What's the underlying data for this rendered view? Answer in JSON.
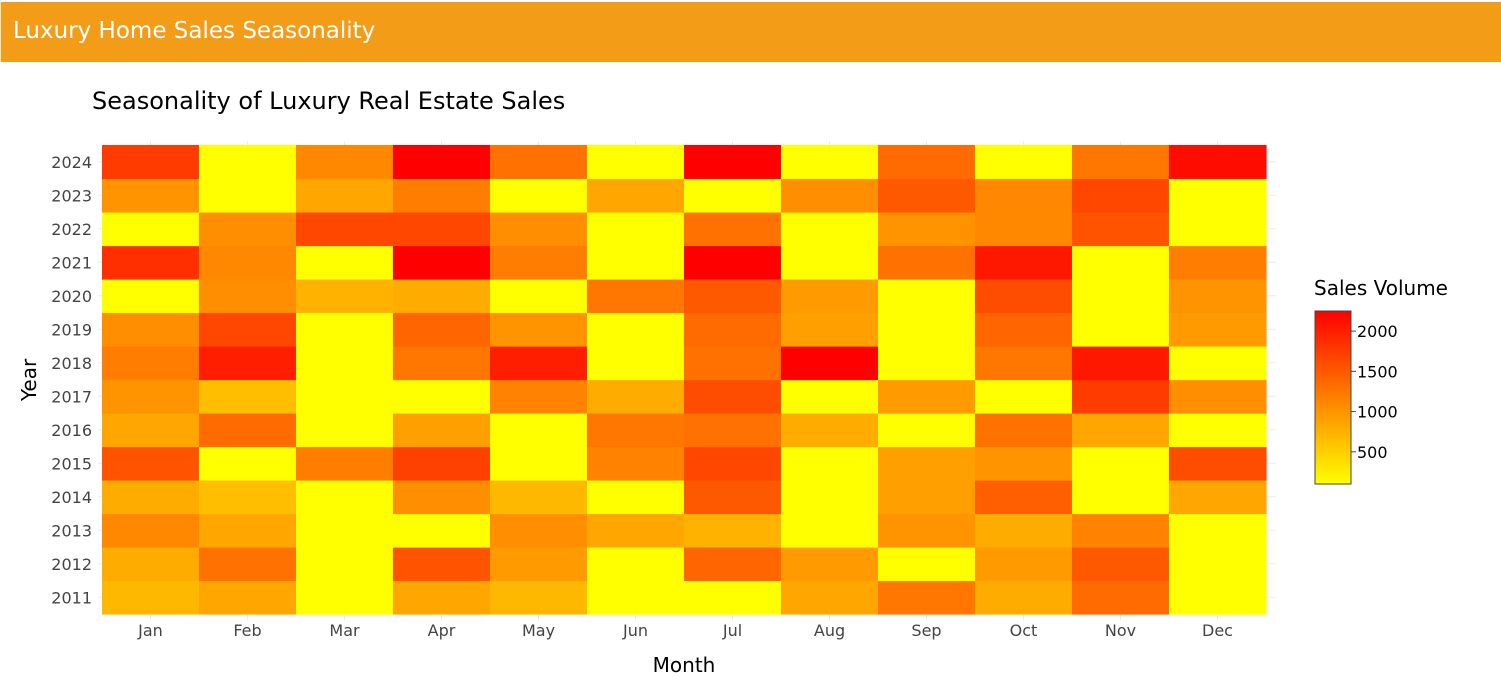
{
  "app": {
    "title": "Luxury Home Sales Seasonality",
    "header_color": "#f39c17"
  },
  "chart_data": {
    "type": "heatmap",
    "title": "Seasonality of Luxury Real Estate Sales",
    "xlabel": "Month",
    "ylabel": "Year",
    "x": [
      "Jan",
      "Feb",
      "Mar",
      "Apr",
      "May",
      "Jun",
      "Jul",
      "Aug",
      "Sep",
      "Oct",
      "Nov",
      "Dec"
    ],
    "y": [
      "2011",
      "2012",
      "2013",
      "2014",
      "2015",
      "2016",
      "2017",
      "2018",
      "2019",
      "2020",
      "2021",
      "2022",
      "2023",
      "2024"
    ],
    "z": [
      [
        700,
        850,
        100,
        850,
        700,
        100,
        100,
        850,
        1250,
        800,
        1350,
        100
      ],
      [
        800,
        1300,
        100,
        1550,
        950,
        100,
        1400,
        950,
        100,
        950,
        1500,
        100
      ],
      [
        1100,
        850,
        100,
        100,
        1050,
        850,
        750,
        100,
        1000,
        800,
        1150,
        100
      ],
      [
        800,
        650,
        100,
        1050,
        700,
        100,
        1500,
        100,
        900,
        1450,
        100,
        850
      ],
      [
        1550,
        100,
        1200,
        1700,
        100,
        1150,
        1650,
        100,
        900,
        1000,
        100,
        1600
      ],
      [
        850,
        1350,
        100,
        900,
        100,
        1250,
        1300,
        800,
        100,
        1300,
        850,
        100
      ],
      [
        1000,
        650,
        100,
        100,
        1150,
        800,
        1600,
        100,
        950,
        100,
        1750,
        1050
      ],
      [
        1200,
        2000,
        100,
        1250,
        2000,
        100,
        1300,
        2250,
        100,
        1250,
        2050,
        100
      ],
      [
        1050,
        1650,
        100,
        1400,
        1000,
        100,
        1350,
        900,
        100,
        1400,
        100,
        950
      ],
      [
        100,
        1050,
        750,
        800,
        100,
        1250,
        1500,
        950,
        100,
        1600,
        100,
        1000
      ],
      [
        1850,
        1100,
        100,
        2250,
        1200,
        100,
        2250,
        100,
        1300,
        2050,
        100,
        1200
      ],
      [
        100,
        1050,
        1650,
        1650,
        1050,
        100,
        1300,
        100,
        1000,
        1100,
        1550,
        100
      ],
      [
        1000,
        100,
        850,
        1200,
        100,
        850,
        100,
        1050,
        1500,
        1100,
        1650,
        100
      ],
      [
        1750,
        100,
        1100,
        2250,
        1300,
        100,
        2250,
        100,
        1350,
        100,
        1250,
        2150
      ]
    ],
    "zmin": 100,
    "zmax": 2250,
    "colorscale": [
      "#ffff00",
      "#ff0000"
    ],
    "colorbar": {
      "title": "Sales Volume",
      "tickvals": [
        500,
        1000,
        1500,
        2000
      ],
      "ticktext": [
        "500",
        "1000",
        "1500",
        "2000"
      ]
    },
    "legend_position": "right",
    "grid": true
  }
}
